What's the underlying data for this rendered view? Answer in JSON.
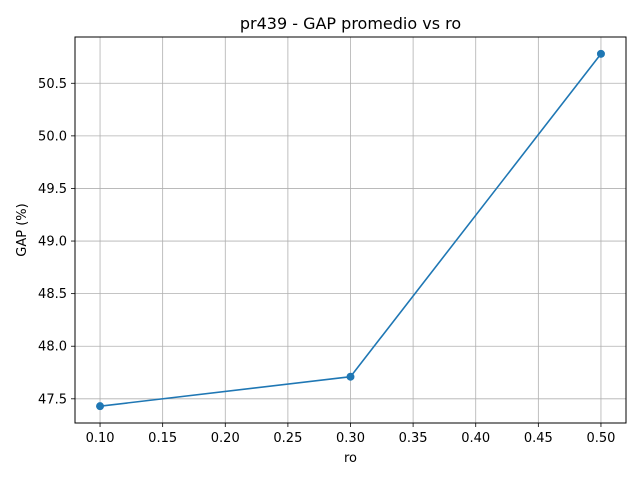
{
  "chart_data": {
    "type": "line",
    "title": "pr439 - GAP promedio vs ro",
    "xlabel": "ro",
    "ylabel": "GAP (%)",
    "x": [
      0.1,
      0.3,
      0.5
    ],
    "series": [
      {
        "values": [
          47.43,
          47.71,
          50.78
        ],
        "color": "#1f77b4",
        "marker": "circle"
      }
    ],
    "xticks": [
      "0.10",
      "0.15",
      "0.20",
      "0.25",
      "0.30",
      "0.35",
      "0.40",
      "0.45",
      "0.50"
    ],
    "yticks": [
      "47.5",
      "48.0",
      "48.5",
      "49.0",
      "49.5",
      "50.0",
      "50.5"
    ],
    "xlim": [
      0.08,
      0.52
    ],
    "ylim": [
      47.27,
      50.94
    ],
    "grid": true
  }
}
